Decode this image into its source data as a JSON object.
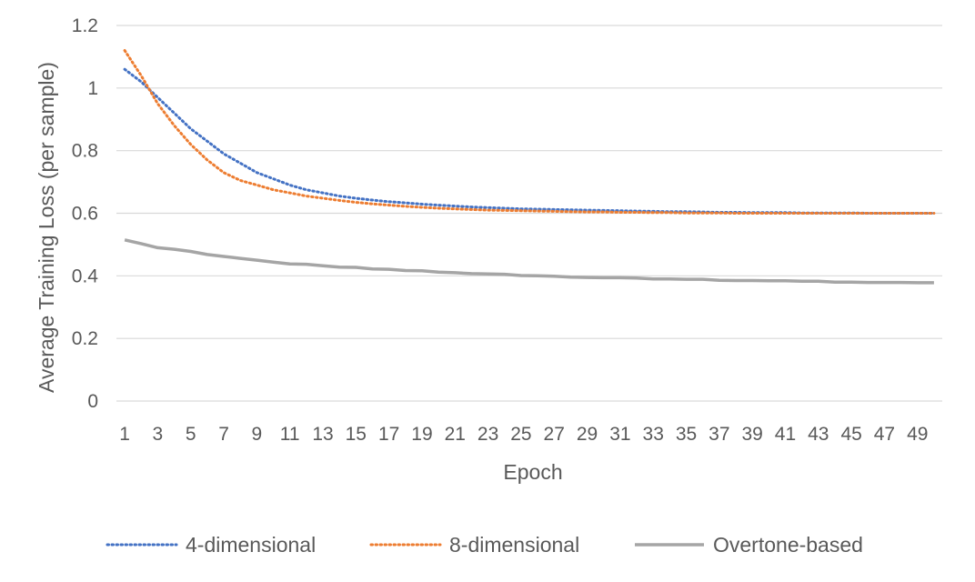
{
  "chart_data": {
    "type": "line",
    "xlabel": "Epoch",
    "ylabel": "Average Training Loss (per sample)",
    "ylim": [
      0,
      1.2
    ],
    "yticks": [
      "0",
      "0.2",
      "0.4",
      "0.6",
      "0.8",
      "1",
      "1.2"
    ],
    "xticks": [
      "1",
      "3",
      "5",
      "7",
      "9",
      "11",
      "13",
      "15",
      "17",
      "19",
      "21",
      "23",
      "25",
      "27",
      "29",
      "31",
      "33",
      "35",
      "37",
      "39",
      "41",
      "43",
      "45",
      "47",
      "49"
    ],
    "x": [
      1,
      2,
      3,
      4,
      5,
      6,
      7,
      8,
      9,
      10,
      11,
      12,
      13,
      14,
      15,
      16,
      17,
      18,
      19,
      20,
      21,
      22,
      23,
      24,
      25,
      26,
      27,
      28,
      29,
      30,
      31,
      32,
      33,
      34,
      35,
      36,
      37,
      38,
      39,
      40,
      41,
      42,
      43,
      44,
      45,
      46,
      47,
      48,
      49,
      50
    ],
    "grid": true,
    "legend_position": "bottom",
    "series": [
      {
        "name": "4-dimensional",
        "color": "#4472C4",
        "style": "dotted",
        "values": [
          1.06,
          1.02,
          0.97,
          0.92,
          0.87,
          0.83,
          0.79,
          0.76,
          0.73,
          0.71,
          0.69,
          0.675,
          0.665,
          0.655,
          0.648,
          0.642,
          0.637,
          0.633,
          0.629,
          0.626,
          0.623,
          0.62,
          0.618,
          0.616,
          0.614,
          0.613,
          0.612,
          0.611,
          0.61,
          0.609,
          0.608,
          0.607,
          0.606,
          0.605,
          0.605,
          0.604,
          0.603,
          0.603,
          0.602,
          0.602,
          0.602,
          0.601,
          0.601,
          0.601,
          0.601,
          0.6,
          0.6,
          0.6,
          0.6,
          0.6
        ]
      },
      {
        "name": "8-dimensional",
        "color": "#ED7D31",
        "style": "dotted",
        "values": [
          1.12,
          1.04,
          0.95,
          0.88,
          0.82,
          0.77,
          0.73,
          0.705,
          0.69,
          0.675,
          0.665,
          0.655,
          0.648,
          0.641,
          0.635,
          0.63,
          0.626,
          0.622,
          0.619,
          0.616,
          0.614,
          0.612,
          0.61,
          0.609,
          0.608,
          0.607,
          0.606,
          0.605,
          0.604,
          0.604,
          0.603,
          0.603,
          0.602,
          0.602,
          0.601,
          0.601,
          0.601,
          0.6,
          0.6,
          0.6,
          0.6,
          0.6,
          0.6,
          0.6,
          0.6,
          0.6,
          0.6,
          0.6,
          0.6,
          0.6
        ]
      },
      {
        "name": "Overtone-based",
        "color": "#A5A5A5",
        "style": "solid",
        "values": [
          0.515,
          0.503,
          0.49,
          0.485,
          0.478,
          0.468,
          0.462,
          0.456,
          0.45,
          0.444,
          0.438,
          0.437,
          0.432,
          0.428,
          0.427,
          0.422,
          0.421,
          0.417,
          0.416,
          0.412,
          0.41,
          0.407,
          0.406,
          0.405,
          0.401,
          0.4,
          0.399,
          0.396,
          0.395,
          0.394,
          0.394,
          0.393,
          0.39,
          0.39,
          0.389,
          0.389,
          0.386,
          0.385,
          0.385,
          0.384,
          0.384,
          0.383,
          0.383,
          0.38,
          0.38,
          0.379,
          0.379,
          0.379,
          0.378,
          0.378
        ]
      }
    ]
  }
}
